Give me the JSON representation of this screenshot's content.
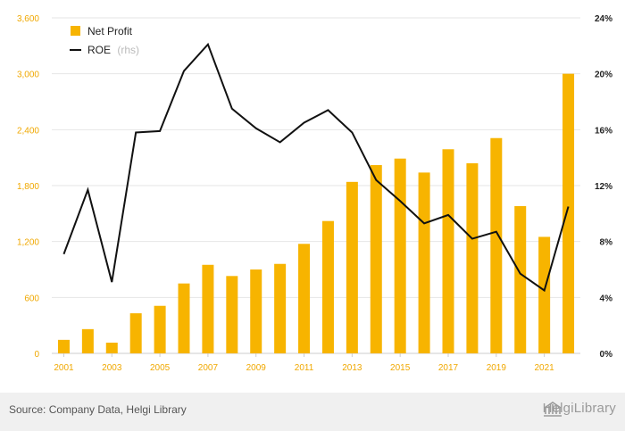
{
  "chart_data": {
    "type": "bar+line",
    "categories": [
      "2001",
      "2002",
      "2003",
      "2004",
      "2005",
      "2006",
      "2007",
      "2008",
      "2009",
      "2010",
      "2011",
      "2012",
      "2013",
      "2014",
      "2015",
      "2016",
      "2017",
      "2018",
      "2019",
      "2020",
      "2021",
      "2022"
    ],
    "x_tick_labels": [
      "2001",
      "2003",
      "2005",
      "2007",
      "2009",
      "2011",
      "2013",
      "2015",
      "2017",
      "2019",
      "2021"
    ],
    "series": [
      {
        "name": "Net Profit",
        "axis": "left",
        "type": "bar",
        "color": "#f7b400",
        "values": [
          145,
          260,
          115,
          430,
          510,
          750,
          950,
          830,
          900,
          960,
          1175,
          1420,
          1840,
          2020,
          2090,
          1940,
          2190,
          2040,
          2310,
          1580,
          1250,
          3000
        ]
      },
      {
        "name": "ROE",
        "name_suffix": "(rhs)",
        "axis": "right",
        "type": "line",
        "color": "#111111",
        "unit": "%",
        "values": [
          7.1,
          11.7,
          5.1,
          15.8,
          15.9,
          20.2,
          22.1,
          17.5,
          16.1,
          15.1,
          16.5,
          17.4,
          15.8,
          12.4,
          10.9,
          9.3,
          9.9,
          8.2,
          8.7,
          5.7,
          4.5,
          10.5
        ]
      }
    ],
    "y_left": {
      "min": 0,
      "max": 3600,
      "ticks": [
        "0",
        "600",
        "1,200",
        "1,800",
        "2,400",
        "3,000",
        "3,600"
      ],
      "tick_values": [
        0,
        600,
        1200,
        1800,
        2400,
        3000,
        3600
      ]
    },
    "y_right": {
      "min": 0,
      "max": 24,
      "ticks": [
        "0%",
        "4%",
        "8%",
        "12%",
        "16%",
        "20%",
        "24%"
      ],
      "tick_values": [
        0,
        4,
        8,
        12,
        16,
        20,
        24
      ]
    },
    "grid": true,
    "legend_position": "top-left"
  },
  "footer": {
    "source": "Source: Company Data, Helgi Library",
    "logo_text": "HelgiLibrary"
  }
}
